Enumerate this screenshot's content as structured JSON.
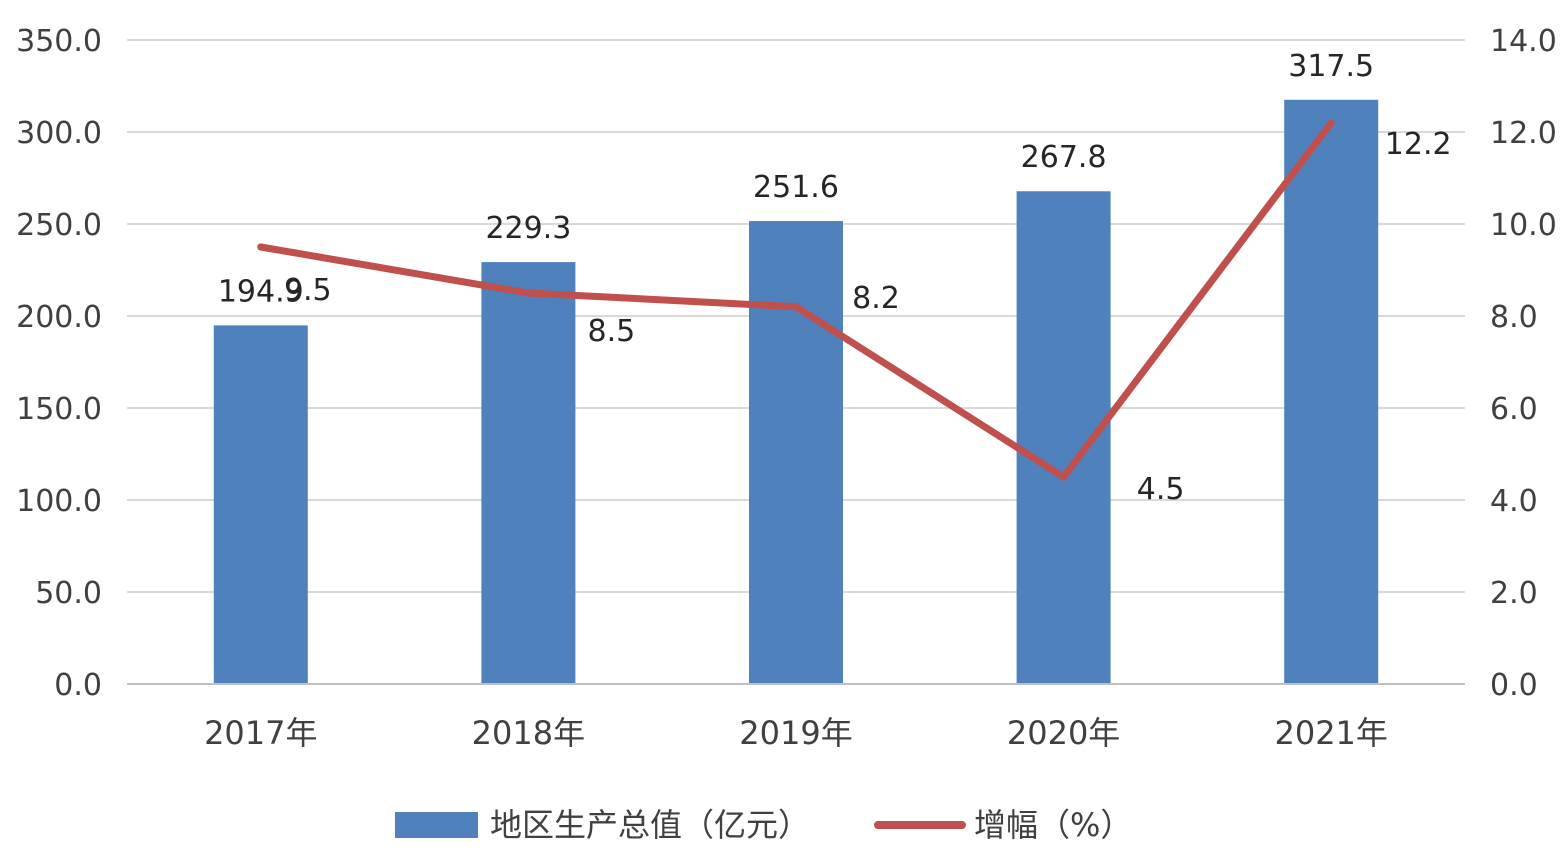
{
  "chart_data": {
    "type": "bar",
    "categories": [
      "2017年",
      "2018年",
      "2019年",
      "2020年",
      "2021年"
    ],
    "series": [
      {
        "name": "地区生产总值（亿元）",
        "type": "bar",
        "axis": "left",
        "color": "#4f81bd",
        "values": [
          194.9,
          229.3,
          251.6,
          267.8,
          317.5
        ],
        "labels": [
          "194.9",
          "229.3",
          "251.6",
          "267.8",
          "317.5"
        ]
      },
      {
        "name": "增幅（%）",
        "type": "line",
        "axis": "right",
        "color": "#c0504d",
        "values": [
          9.5,
          8.5,
          8.2,
          4.5,
          12.2
        ],
        "labels": [
          "9.5",
          "8.5",
          "8.2",
          "4.5",
          "12.2"
        ]
      }
    ],
    "y_left": {
      "ylim": [
        0,
        350
      ],
      "ticks": [
        "0.0",
        "50.0",
        "100.0",
        "150.0",
        "200.0",
        "250.0",
        "300.0",
        "350.0"
      ]
    },
    "y_right": {
      "ylim": [
        0,
        14
      ],
      "ticks": [
        "0.0",
        "2.0",
        "4.0",
        "6.0",
        "8.0",
        "10.0",
        "12.0",
        "14.0"
      ]
    },
    "grid": true,
    "legend": "bottom",
    "title": "",
    "xlabel": "",
    "ylabel": ""
  }
}
